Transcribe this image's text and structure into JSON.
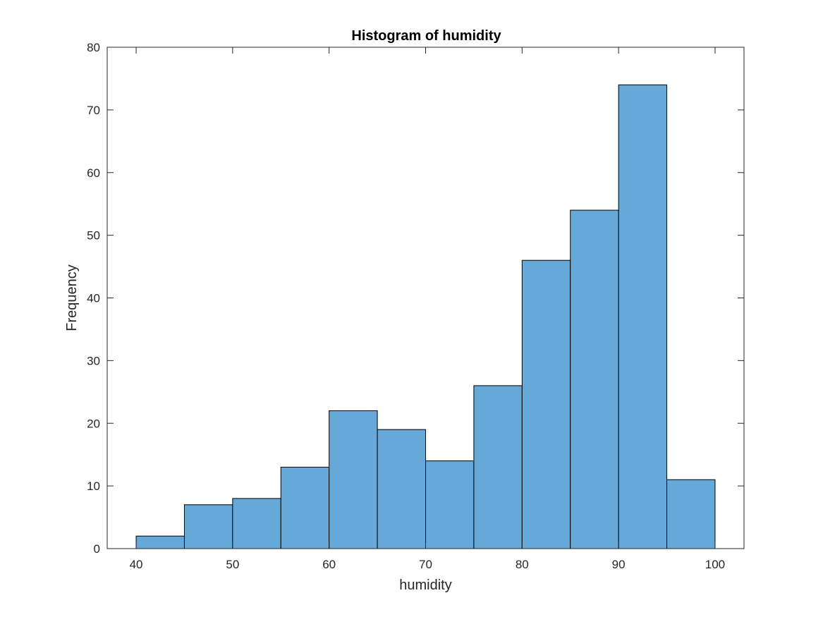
{
  "chart_data": {
    "type": "bar",
    "title": "Histogram of humidity",
    "xlabel": "humidity",
    "ylabel": "Frequency",
    "bin_edges": [
      40,
      45,
      50,
      55,
      60,
      65,
      70,
      75,
      80,
      85,
      90,
      95,
      100
    ],
    "values": [
      2,
      7,
      8,
      13,
      22,
      19,
      14,
      26,
      46,
      54,
      74,
      11
    ],
    "xlim": [
      37,
      103
    ],
    "ylim": [
      0,
      80
    ],
    "xticks": [
      40,
      50,
      60,
      70,
      80,
      90,
      100
    ],
    "yticks": [
      0,
      10,
      20,
      30,
      40,
      50,
      60,
      70,
      80
    ],
    "bar_color": "#66a8d8",
    "edge_color": "#000000",
    "grid": false
  }
}
